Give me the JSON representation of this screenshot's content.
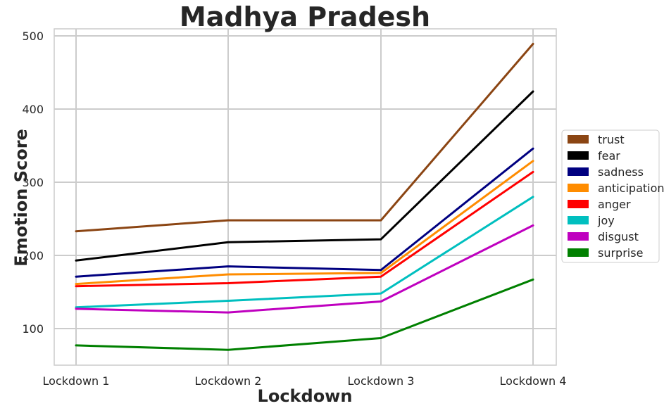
{
  "chart_data": {
    "type": "line",
    "title": "Madhya Pradesh",
    "xlabel": "Lockdown",
    "ylabel": "Emotion Score",
    "categories": [
      "Lockdown 1",
      "Lockdown 2",
      "Lockdown 3",
      "Lockdown 4"
    ],
    "ylim": [
      50,
      510
    ],
    "yticks": [
      100,
      200,
      300,
      400,
      500
    ],
    "grid": true,
    "legend_position": "right",
    "series": [
      {
        "name": "trust",
        "color": "#8B4513",
        "values": [
          233,
          248,
          248,
          489
        ]
      },
      {
        "name": "fear",
        "color": "#000000",
        "values": [
          193,
          218,
          222,
          424
        ]
      },
      {
        "name": "sadness",
        "color": "#000080",
        "values": [
          171,
          185,
          180,
          346
        ]
      },
      {
        "name": "anticipation",
        "color": "#FF8C00",
        "values": [
          161,
          174,
          176,
          329
        ]
      },
      {
        "name": "anger",
        "color": "#FF0000",
        "values": [
          158,
          162,
          171,
          314
        ]
      },
      {
        "name": "joy",
        "color": "#00BFBF",
        "values": [
          129,
          138,
          148,
          280
        ]
      },
      {
        "name": "disgust",
        "color": "#BF00BF",
        "values": [
          127,
          122,
          137,
          241
        ]
      },
      {
        "name": "surprise",
        "color": "#008000",
        "values": [
          77,
          71,
          87,
          167
        ]
      }
    ]
  }
}
